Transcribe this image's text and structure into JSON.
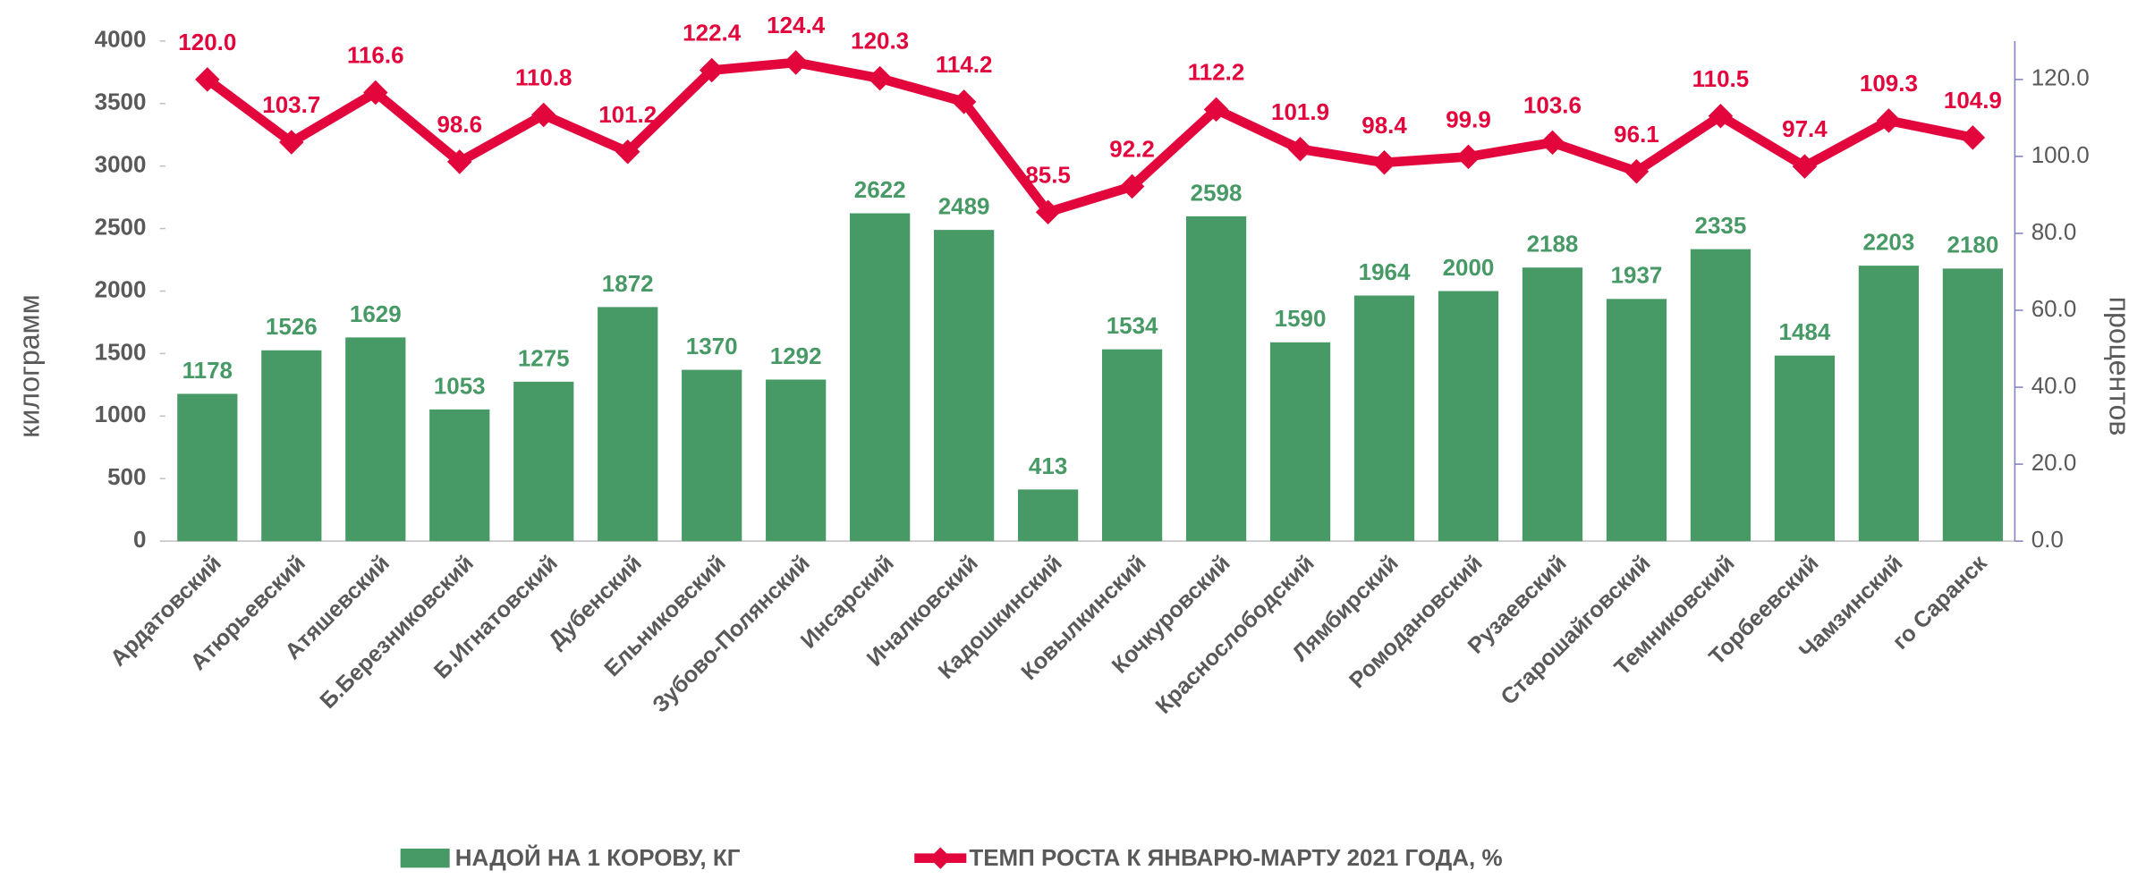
{
  "chart_data": {
    "type": "bar_line",
    "y_label": "килограмм",
    "y2_label": "процентов",
    "categories": [
      "Ардатовский",
      "Атюрьевский",
      "Атяшевский",
      "Б.Березниковский",
      "Б.Игнатовский",
      "Дубенский",
      "Ельниковский",
      "Зубово-Полянский",
      "Инсарский",
      "Ичалковский",
      "Кадошкинский",
      "Ковылкинский",
      "Кочкуровский",
      "Краснослободский",
      "Лямбирский",
      "Ромодановский",
      "Рузаевский",
      "Старошайговский",
      "Темниковский",
      "Торбеевский",
      "Чамзинский",
      "го Саранск"
    ],
    "series": [
      {
        "name": "НАДОЙ НА 1 КОРОВУ, КГ",
        "type": "bar",
        "color": "#479a66",
        "values": [
          1178,
          1526,
          1629,
          1053,
          1275,
          1872,
          1370,
          1292,
          2622,
          2489,
          413,
          1534,
          2598,
          1590,
          1964,
          2000,
          2188,
          1937,
          2335,
          1484,
          2203,
          2180
        ]
      },
      {
        "name": "ТЕМП РОСТА К ЯНВАРЮ-МАРТУ 2021 ГОДА, %",
        "type": "line",
        "axis": "y2",
        "color": "#e2063c",
        "values": [
          120.0,
          103.7,
          116.6,
          98.6,
          110.8,
          101.2,
          122.4,
          124.4,
          120.3,
          114.2,
          85.5,
          92.2,
          112.2,
          101.9,
          98.4,
          99.9,
          103.6,
          96.1,
          110.5,
          97.4,
          109.3,
          104.9
        ],
        "value_labels": [
          "120.0",
          "103.7",
          "116.6",
          "98.6",
          "110.8",
          "101.2",
          "122.4",
          "124.4",
          "120.3",
          "114.2",
          "85.5",
          "92.2",
          "112.2",
          "101.9",
          "98.4",
          "99.9",
          "103.6",
          "96.1",
          "110.5",
          "97.4",
          "109.3",
          "104.9"
        ]
      }
    ],
    "ylim": [
      0,
      4000
    ],
    "yticks": [
      0,
      500,
      1000,
      1500,
      2000,
      2500,
      3000,
      3500,
      4000
    ],
    "y2lim": [
      0,
      130
    ],
    "y2ticks": [
      {
        "value": 0,
        "label": "0.0"
      },
      {
        "value": 20,
        "label": "20.0"
      },
      {
        "value": 40,
        "label": "40.0"
      },
      {
        "value": 60,
        "label": "60.0"
      },
      {
        "value": 80,
        "label": "80.0"
      },
      {
        "value": 100,
        "label": "100.0"
      },
      {
        "value": 120,
        "label": "120.0"
      }
    ],
    "grid": false,
    "legend": "bottom"
  }
}
